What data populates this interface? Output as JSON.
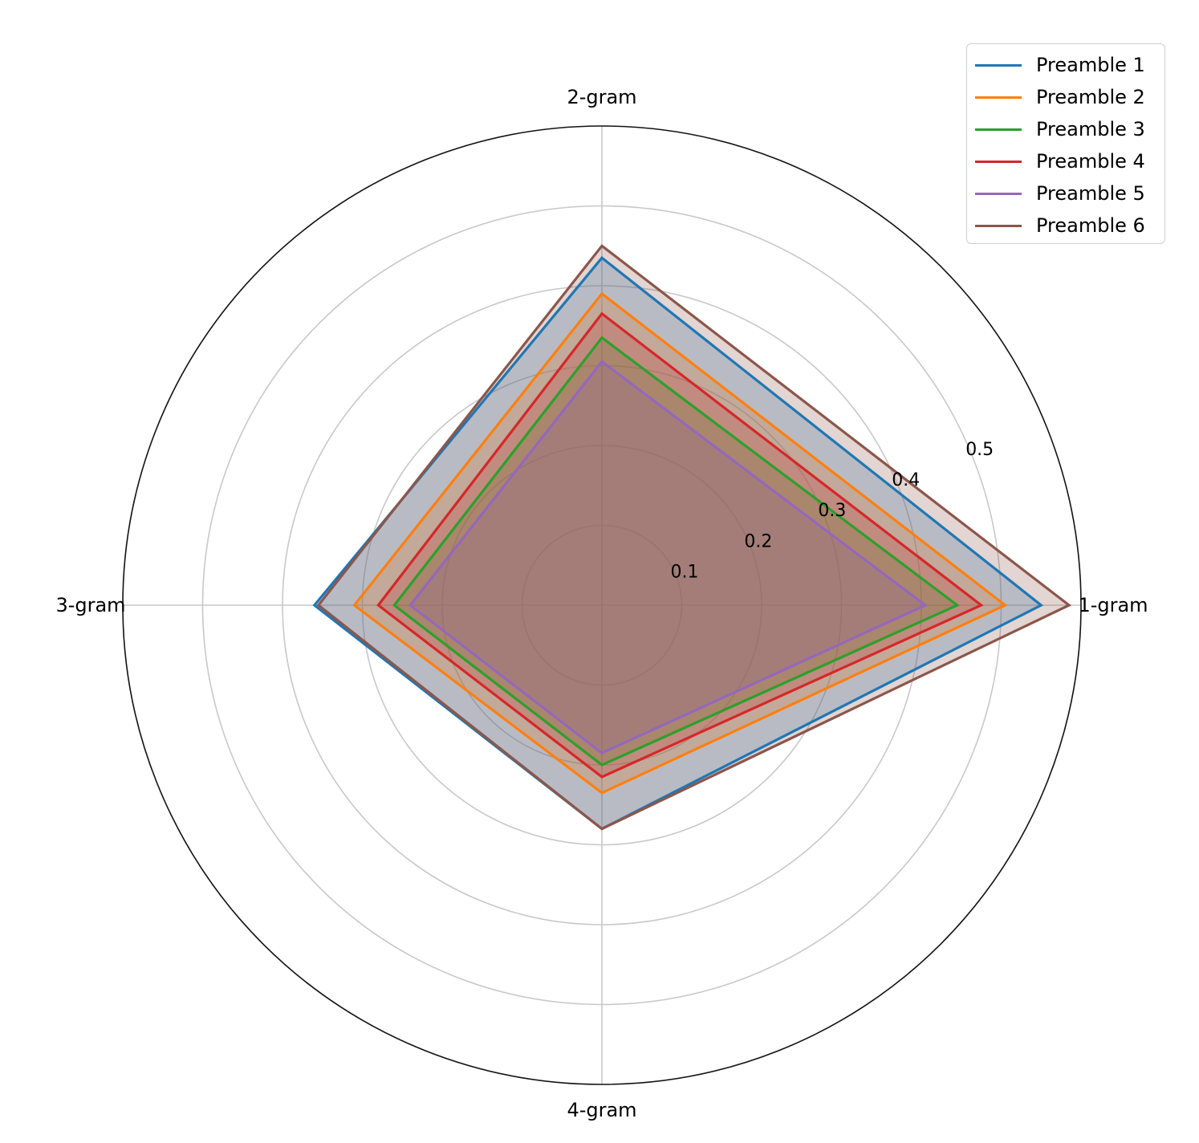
{
  "chart_data": {
    "type": "radar",
    "axes": [
      "1-gram",
      "2-gram",
      "3-gram",
      "4-gram"
    ],
    "r_ticks": [
      0.1,
      0.2,
      0.3,
      0.4,
      0.5
    ],
    "r_tick_labels": [
      "0.1",
      "0.2",
      "0.3",
      "0.4",
      "0.5"
    ],
    "rlim": [
      0,
      0.6
    ],
    "grid": true,
    "legend_position": "top-right",
    "series": [
      {
        "name": "Preamble 1",
        "color": "#1f77b4",
        "values": [
          0.55,
          0.435,
          0.36,
          0.28
        ]
      },
      {
        "name": "Preamble 2",
        "color": "#ff7f0e",
        "values": [
          0.505,
          0.39,
          0.31,
          0.235
        ]
      },
      {
        "name": "Preamble 3",
        "color": "#2ca02c",
        "values": [
          0.445,
          0.335,
          0.26,
          0.2
        ]
      },
      {
        "name": "Preamble 4",
        "color": "#d62728",
        "values": [
          0.475,
          0.365,
          0.28,
          0.215
        ]
      },
      {
        "name": "Preamble 5",
        "color": "#9467bd",
        "values": [
          0.405,
          0.305,
          0.24,
          0.185
        ]
      },
      {
        "name": "Preamble 6",
        "color": "#8c564b",
        "values": [
          0.585,
          0.45,
          0.355,
          0.28
        ]
      }
    ]
  }
}
